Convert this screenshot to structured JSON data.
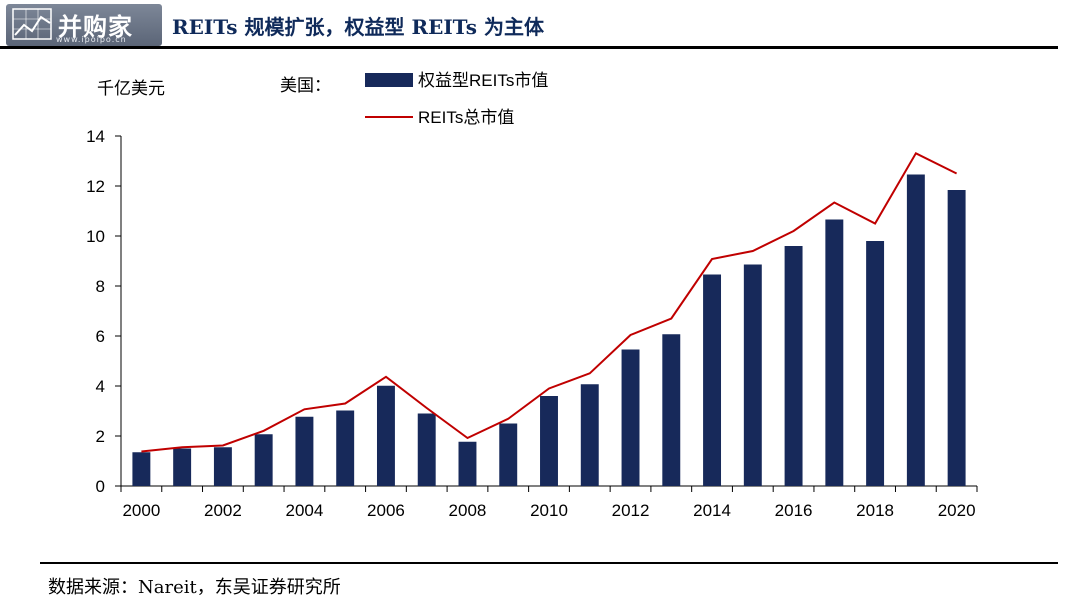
{
  "header": {
    "logo_text": "并购家",
    "logo_url": "www.ipoipo.cn",
    "title": "REITs 规模扩张，权益型 REITs 为主体"
  },
  "chart_data": {
    "type": "bar",
    "unit_label": "千亿美元",
    "legend_prefix": "美国：",
    "categories": [
      "2000",
      "2001",
      "2002",
      "2003",
      "2004",
      "2005",
      "2006",
      "2007",
      "2008",
      "2009",
      "2010",
      "2011",
      "2012",
      "2013",
      "2014",
      "2015",
      "2016",
      "2017",
      "2018",
      "2019",
      "2020"
    ],
    "x_tick_labels": [
      "2000",
      "",
      "2002",
      "",
      "2004",
      "",
      "2006",
      "",
      "2008",
      "",
      "2010",
      "",
      "2012",
      "",
      "2014",
      "",
      "2016",
      "",
      "2018",
      "",
      "2020"
    ],
    "ylim": [
      0,
      14
    ],
    "yticks": [
      0,
      2,
      4,
      6,
      8,
      10,
      12,
      14
    ],
    "series": [
      {
        "name": "权益型REITs市值",
        "kind": "bar",
        "color": "#17295a",
        "values": [
          1.35,
          1.5,
          1.55,
          2.07,
          2.77,
          3.02,
          4.01,
          2.9,
          1.77,
          2.5,
          3.6,
          4.07,
          5.46,
          6.07,
          8.46,
          8.86,
          9.6,
          10.66,
          9.8,
          12.46,
          11.84
        ]
      },
      {
        "name": "REITs总市值",
        "kind": "line",
        "color": "#c00000",
        "values": [
          1.38,
          1.55,
          1.62,
          2.21,
          3.07,
          3.3,
          4.37,
          3.12,
          1.92,
          2.69,
          3.9,
          4.51,
          6.04,
          6.7,
          9.08,
          9.4,
          10.2,
          11.34,
          10.5,
          13.31,
          12.5
        ]
      }
    ]
  },
  "footer": {
    "source": "数据来源：Nareit，东吴证券研究所"
  }
}
